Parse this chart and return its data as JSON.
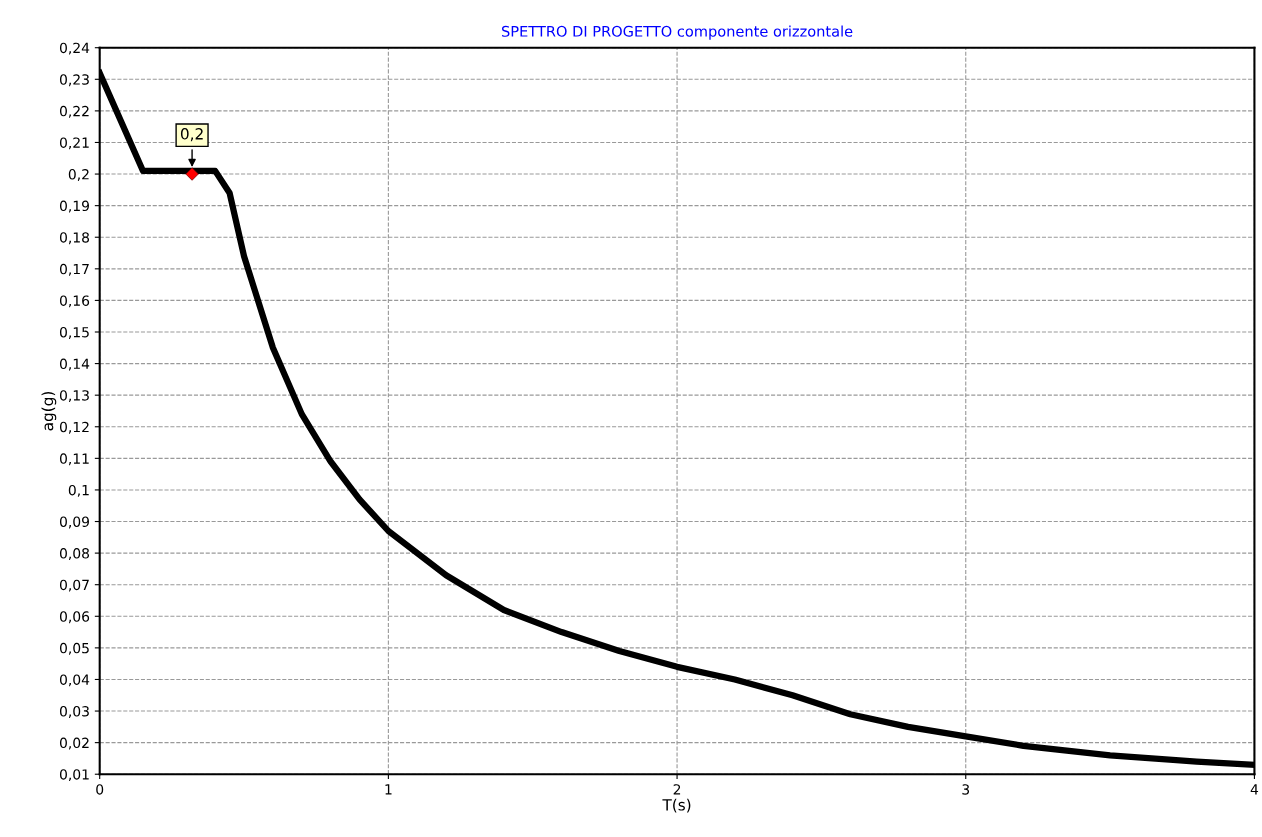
{
  "chart_data": {
    "type": "line",
    "title": "SPETTRO DI PROGETTO componente orizzontale",
    "xlabel": "T(s)",
    "ylabel": "ag(g)",
    "xlim": [
      0,
      4
    ],
    "ylim": [
      0.01,
      0.24
    ],
    "xticks": [
      0,
      1,
      2,
      3,
      4
    ],
    "yticks": [
      {
        "value": 0.01,
        "label": "0,01"
      },
      {
        "value": 0.02,
        "label": "0,02"
      },
      {
        "value": 0.03,
        "label": "0,03"
      },
      {
        "value": 0.04,
        "label": "0,04"
      },
      {
        "value": 0.05,
        "label": "0,05"
      },
      {
        "value": 0.06,
        "label": "0,06"
      },
      {
        "value": 0.07,
        "label": "0,07"
      },
      {
        "value": 0.08,
        "label": "0,08"
      },
      {
        "value": 0.09,
        "label": "0,09"
      },
      {
        "value": 0.1,
        "label": "0,1"
      },
      {
        "value": 0.11,
        "label": "0,11"
      },
      {
        "value": 0.12,
        "label": "0,12"
      },
      {
        "value": 0.13,
        "label": "0,13"
      },
      {
        "value": 0.14,
        "label": "0,14"
      },
      {
        "value": 0.15,
        "label": "0,15"
      },
      {
        "value": 0.16,
        "label": "0,16"
      },
      {
        "value": 0.17,
        "label": "0,17"
      },
      {
        "value": 0.18,
        "label": "0,18"
      },
      {
        "value": 0.19,
        "label": "0,19"
      },
      {
        "value": 0.2,
        "label": "0,2"
      },
      {
        "value": 0.21,
        "label": "0,21"
      },
      {
        "value": 0.22,
        "label": "0,22"
      },
      {
        "value": 0.23,
        "label": "0,23"
      },
      {
        "value": 0.24,
        "label": "0,24"
      }
    ],
    "grid": true,
    "line_style": "solid",
    "series": [
      {
        "color": "#000000",
        "x": [
          0,
          0.15,
          0.4,
          0.45,
          0.5,
          0.6,
          0.7,
          0.8,
          0.9,
          1.0,
          1.2,
          1.4,
          1.6,
          1.8,
          2.0,
          2.2,
          2.4,
          2.6,
          2.8,
          3.0,
          3.2,
          3.5,
          3.8,
          4.0
        ],
        "values": [
          0.232,
          0.201,
          0.201,
          0.194,
          0.174,
          0.145,
          0.124,
          0.109,
          0.097,
          0.087,
          0.073,
          0.062,
          0.055,
          0.049,
          0.044,
          0.04,
          0.035,
          0.029,
          0.025,
          0.022,
          0.019,
          0.016,
          0.014,
          0.013
        ]
      },
      {
        "type": "scatter",
        "color": "#ff0000",
        "marker": "diamond",
        "x": [
          0.32
        ],
        "values": [
          0.2
        ]
      }
    ],
    "annotations": [
      {
        "text": "0,2",
        "x": 0.32,
        "y": 0.2
      }
    ]
  }
}
